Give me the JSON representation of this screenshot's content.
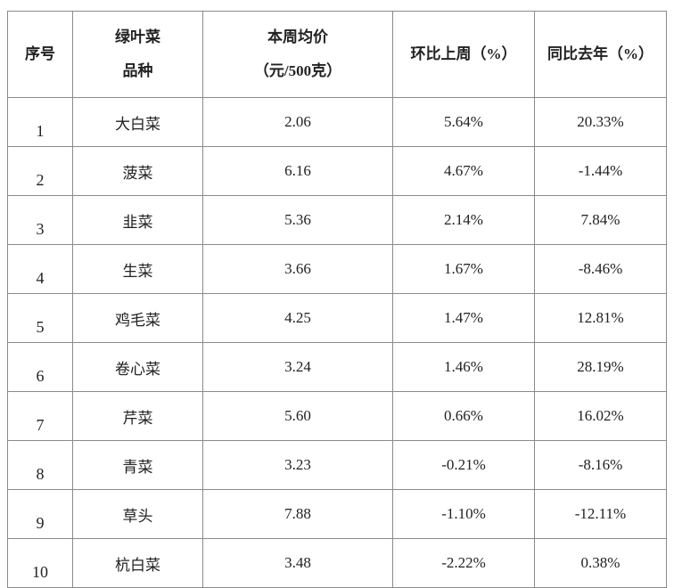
{
  "table": {
    "headers": [
      {
        "line1": "序号",
        "line2": ""
      },
      {
        "line1": "绿叶菜",
        "line2": "品种"
      },
      {
        "line1": "本周均价",
        "line2": "（元/500克）"
      },
      {
        "line1": "环比上周（%）",
        "line2": ""
      },
      {
        "line1": "同比去年（%）",
        "line2": ""
      }
    ],
    "rows": [
      [
        "1",
        "大白菜",
        "2.06",
        "5.64%",
        "20.33%"
      ],
      [
        "2",
        "菠菜",
        "6.16",
        "4.67%",
        "-1.44%"
      ],
      [
        "3",
        "韭菜",
        "5.36",
        "2.14%",
        "7.84%"
      ],
      [
        "4",
        "生菜",
        "3.66",
        "1.67%",
        "-8.46%"
      ],
      [
        "5",
        "鸡毛菜",
        "4.25",
        "1.47%",
        "12.81%"
      ],
      [
        "6",
        "卷心菜",
        "3.24",
        "1.46%",
        "28.19%"
      ],
      [
        "7",
        "芹菜",
        "5.60",
        "0.66%",
        "16.02%"
      ],
      [
        "8",
        "青菜",
        "3.23",
        "-0.21%",
        "-8.16%"
      ],
      [
        "9",
        "草头",
        "7.88",
        "-1.10%",
        "-12.11%"
      ],
      [
        "10",
        "杭白菜",
        "3.48",
        "-2.22%",
        "0.38%"
      ]
    ]
  }
}
